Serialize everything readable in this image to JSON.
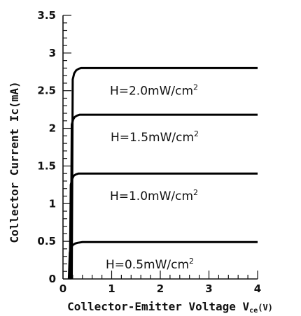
{
  "chart_data": {
    "type": "line",
    "xlabel": "Collector-Emitter Voltage V",
    "xlabel_sub": "ce",
    "xlabel_unit": "(V)",
    "ylabel": "Collector Current Ic(mA)",
    "xlim": [
      0,
      4
    ],
    "ylim": [
      0,
      3.5
    ],
    "x_ticks": [
      "0",
      "1",
      "2",
      "3",
      "4"
    ],
    "y_ticks": [
      "0",
      "0.5",
      "1",
      "1.5",
      "2",
      "2.5",
      "3",
      "3.5"
    ],
    "grid": false,
    "series": [
      {
        "name": "H=0.5mW/cm²",
        "label_text": "H=0.5mW/cm",
        "label_sup": "2",
        "x": [
          0.12,
          0.14,
          0.17,
          0.2,
          0.25,
          0.3,
          0.4,
          1,
          2,
          3,
          4
        ],
        "y": [
          0,
          0.35,
          0.42,
          0.45,
          0.47,
          0.48,
          0.49,
          0.49,
          0.49,
          0.49,
          0.49
        ]
      },
      {
        "name": "H=1.0mW/cm²",
        "label_text": "H=1.0mW/cm",
        "label_sup": "2",
        "x": [
          0.14,
          0.16,
          0.19,
          0.22,
          0.27,
          0.32,
          0.4,
          1,
          2,
          3,
          4
        ],
        "y": [
          0,
          1.25,
          1.33,
          1.37,
          1.39,
          1.4,
          1.4,
          1.4,
          1.4,
          1.4,
          1.4
        ]
      },
      {
        "name": "H=1.5mW/cm²",
        "label_text": "H=1.5mW/cm",
        "label_sup": "2",
        "x": [
          0.16,
          0.18,
          0.21,
          0.24,
          0.29,
          0.34,
          0.45,
          1,
          2,
          3,
          4
        ],
        "y": [
          0,
          2.05,
          2.12,
          2.15,
          2.17,
          2.18,
          2.18,
          2.18,
          2.18,
          2.18,
          2.18
        ]
      },
      {
        "name": "H=2.0mW/cm²",
        "label_text": "H=2.0mW/cm",
        "label_sup": "2",
        "x": [
          0.18,
          0.2,
          0.23,
          0.27,
          0.32,
          0.37,
          0.5,
          1,
          2,
          3,
          4
        ],
        "y": [
          0,
          2.65,
          2.73,
          2.77,
          2.79,
          2.8,
          2.8,
          2.8,
          2.8,
          2.8,
          2.8
        ]
      }
    ]
  }
}
